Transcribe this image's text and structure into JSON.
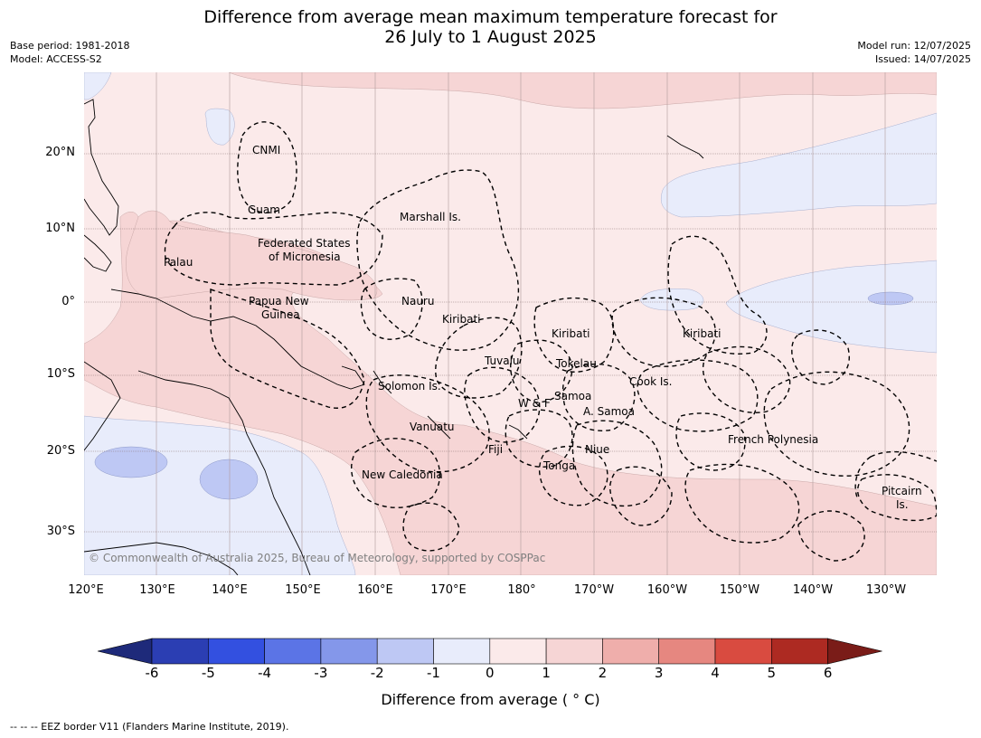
{
  "title_line1": "Difference from average mean maximum temperature forecast for",
  "title_line2": "26 July to 1 August 2025",
  "meta_left": [
    "Base period: 1981-2018",
    "Model: ACCESS-S2"
  ],
  "meta_right": [
    "Model run: 12/07/2025",
    "Issued: 14/07/2025"
  ],
  "lat_ticks": [
    "20°N",
    "10°N",
    "0°",
    "10°S",
    "20°S",
    "30°S"
  ],
  "lon_ticks": [
    "120°E",
    "130°E",
    "140°E",
    "150°E",
    "160°E",
    "170°E",
    "180°",
    "170°W",
    "160°W",
    "150°W",
    "140°W",
    "130°W"
  ],
  "regions": {
    "cnmi": "CNMI",
    "guam": "Guam",
    "marshall": "Marshall Is.",
    "fsm_1": "Federated States",
    "fsm_2": "of Micronesia",
    "palau": "Palau",
    "png_1": "Papua New",
    "png_2": "Guinea",
    "nauru": "Nauru",
    "kiribati_west": "Kiribati",
    "kiribati_central": "Kiribati",
    "kiribati_east": "Kiribati",
    "tuvalu": "Tuvalu",
    "tokelau": "Tokelau",
    "cook": "Cook Is.",
    "solomon": "Solomon Is.",
    "wf": "W & F",
    "samoa": "Samoa",
    "american_samoa": "A. Samoa",
    "vanuatu": "Vanuatu",
    "fiji": "Fiji",
    "niue": "Niue",
    "tonga": "Tonga",
    "new_caledonia": "New Caledonia",
    "french_polynesia": "French Polynesia",
    "pitcairn_1": "Pitcairn",
    "pitcairn_2": "Is."
  },
  "copyright": "© Commonwealth of Australia 2025, Bureau of Meteorology, supported by COSPPac",
  "colorbar": {
    "labels": [
      "-6",
      "-5",
      "-4",
      "-3",
      "-2",
      "-1",
      "0",
      "1",
      "2",
      "3",
      "4",
      "5",
      "6"
    ],
    "colors": [
      "#1e2a7a",
      "#2b3eb3",
      "#3350e0",
      "#5b74e6",
      "#8497ea",
      "#bec8f4",
      "#e8ecfb",
      "#fbeaea",
      "#f6d5d5",
      "#efaeab",
      "#e68780",
      "#d94b40",
      "#ad2a22",
      "#7a1c18"
    ],
    "title": "Difference from average ( ° C)"
  },
  "footnote": "--  --  -- EEZ border V11 (Flanders Marine Institute, 2019)."
}
